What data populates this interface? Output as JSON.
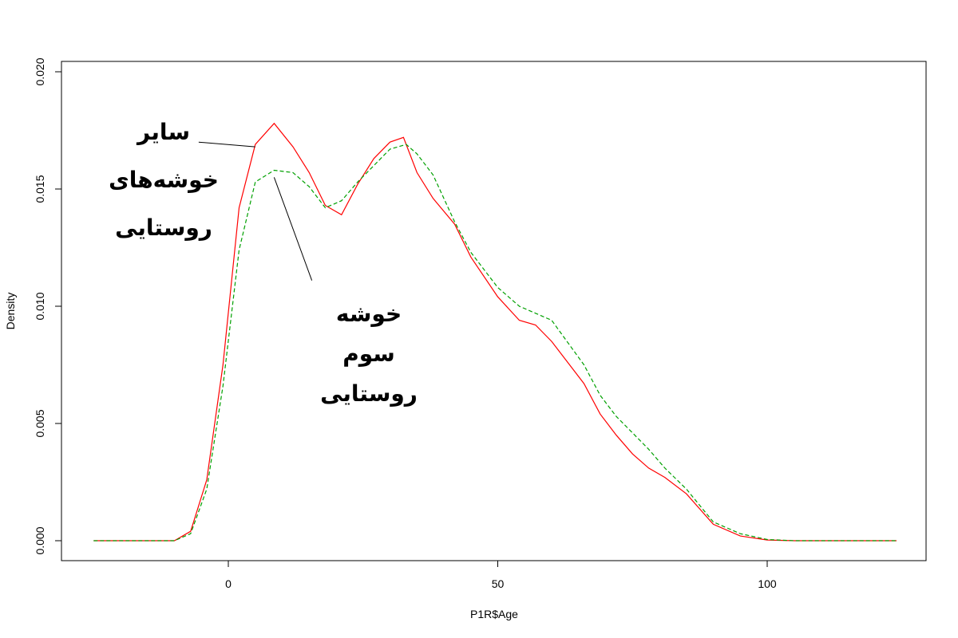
{
  "chart_data": {
    "type": "line",
    "xlabel": "P1R$Age",
    "ylabel": "Density",
    "xlim": [
      -25,
      125
    ],
    "ylim": [
      0,
      0.02
    ],
    "x_ticks": [
      0,
      50,
      100
    ],
    "x_tick_labels": [
      "0",
      "50",
      "100"
    ],
    "y_ticks": [
      0.0,
      0.005,
      0.01,
      0.015,
      0.02
    ],
    "y_tick_labels": [
      "0.000",
      "0.005",
      "0.010",
      "0.015",
      "0.020"
    ],
    "grid": false,
    "series": [
      {
        "color": "#ff0000",
        "dash": "solid",
        "points": [
          [
            -25,
            0
          ],
          [
            -10,
            0
          ],
          [
            -7,
            0.0004
          ],
          [
            -4,
            0.0026
          ],
          [
            -1,
            0.0075
          ],
          [
            2,
            0.0142
          ],
          [
            5,
            0.0169
          ],
          [
            8.5,
            0.0178
          ],
          [
            12,
            0.0168
          ],
          [
            15,
            0.0157
          ],
          [
            18,
            0.0143
          ],
          [
            21,
            0.0139
          ],
          [
            24,
            0.0152
          ],
          [
            27,
            0.0163
          ],
          [
            30,
            0.017
          ],
          [
            32.5,
            0.0172
          ],
          [
            35,
            0.0157
          ],
          [
            38,
            0.0146
          ],
          [
            42,
            0.0135
          ],
          [
            45,
            0.0121
          ],
          [
            50,
            0.0104
          ],
          [
            54,
            0.0094
          ],
          [
            57,
            0.0092
          ],
          [
            60,
            0.0085
          ],
          [
            66,
            0.0067
          ],
          [
            69,
            0.0054
          ],
          [
            72,
            0.0045
          ],
          [
            75,
            0.0037
          ],
          [
            78,
            0.0031
          ],
          [
            81,
            0.0027
          ],
          [
            85,
            0.002
          ],
          [
            90,
            0.0007
          ],
          [
            95,
            0.0002
          ],
          [
            100,
            3e-05
          ],
          [
            105,
            0
          ],
          [
            124,
            0
          ]
        ]
      },
      {
        "color": "#00a000",
        "dash": "dashed",
        "points": [
          [
            -25,
            0
          ],
          [
            -10,
            0
          ],
          [
            -7,
            0.0003
          ],
          [
            -4,
            0.0022
          ],
          [
            -1,
            0.0066
          ],
          [
            2,
            0.0124
          ],
          [
            5,
            0.0153
          ],
          [
            8.5,
            0.0158
          ],
          [
            12,
            0.0157
          ],
          [
            15,
            0.0151
          ],
          [
            18,
            0.0142
          ],
          [
            21,
            0.0145
          ],
          [
            24,
            0.0153
          ],
          [
            27,
            0.016
          ],
          [
            30,
            0.0167
          ],
          [
            33,
            0.0169
          ],
          [
            35,
            0.0165
          ],
          [
            38,
            0.0156
          ],
          [
            42,
            0.0136
          ],
          [
            45,
            0.0123
          ],
          [
            50,
            0.0108
          ],
          [
            54,
            0.01
          ],
          [
            57,
            0.0097
          ],
          [
            60,
            0.0094
          ],
          [
            66,
            0.0075
          ],
          [
            69,
            0.0062
          ],
          [
            72,
            0.0053
          ],
          [
            75,
            0.0046
          ],
          [
            78,
            0.0039
          ],
          [
            81,
            0.0031
          ],
          [
            85,
            0.0022
          ],
          [
            90,
            0.0008
          ],
          [
            95,
            0.0003
          ],
          [
            100,
            5e-05
          ],
          [
            105,
            0
          ],
          [
            124,
            0
          ]
        ]
      }
    ],
    "annotations": [
      {
        "lines": [
          "سایر",
          "خوشه‌های",
          "روستایی"
        ],
        "pointer_from": [
          -5.5,
          0.017
        ],
        "pointer_to": [
          5,
          0.0168
        ]
      },
      {
        "lines": [
          "خوشه",
          "سوم",
          "روستایی"
        ],
        "pointer_from": [
          15.5,
          0.0111
        ],
        "pointer_to": [
          8.5,
          0.0155
        ]
      }
    ]
  }
}
